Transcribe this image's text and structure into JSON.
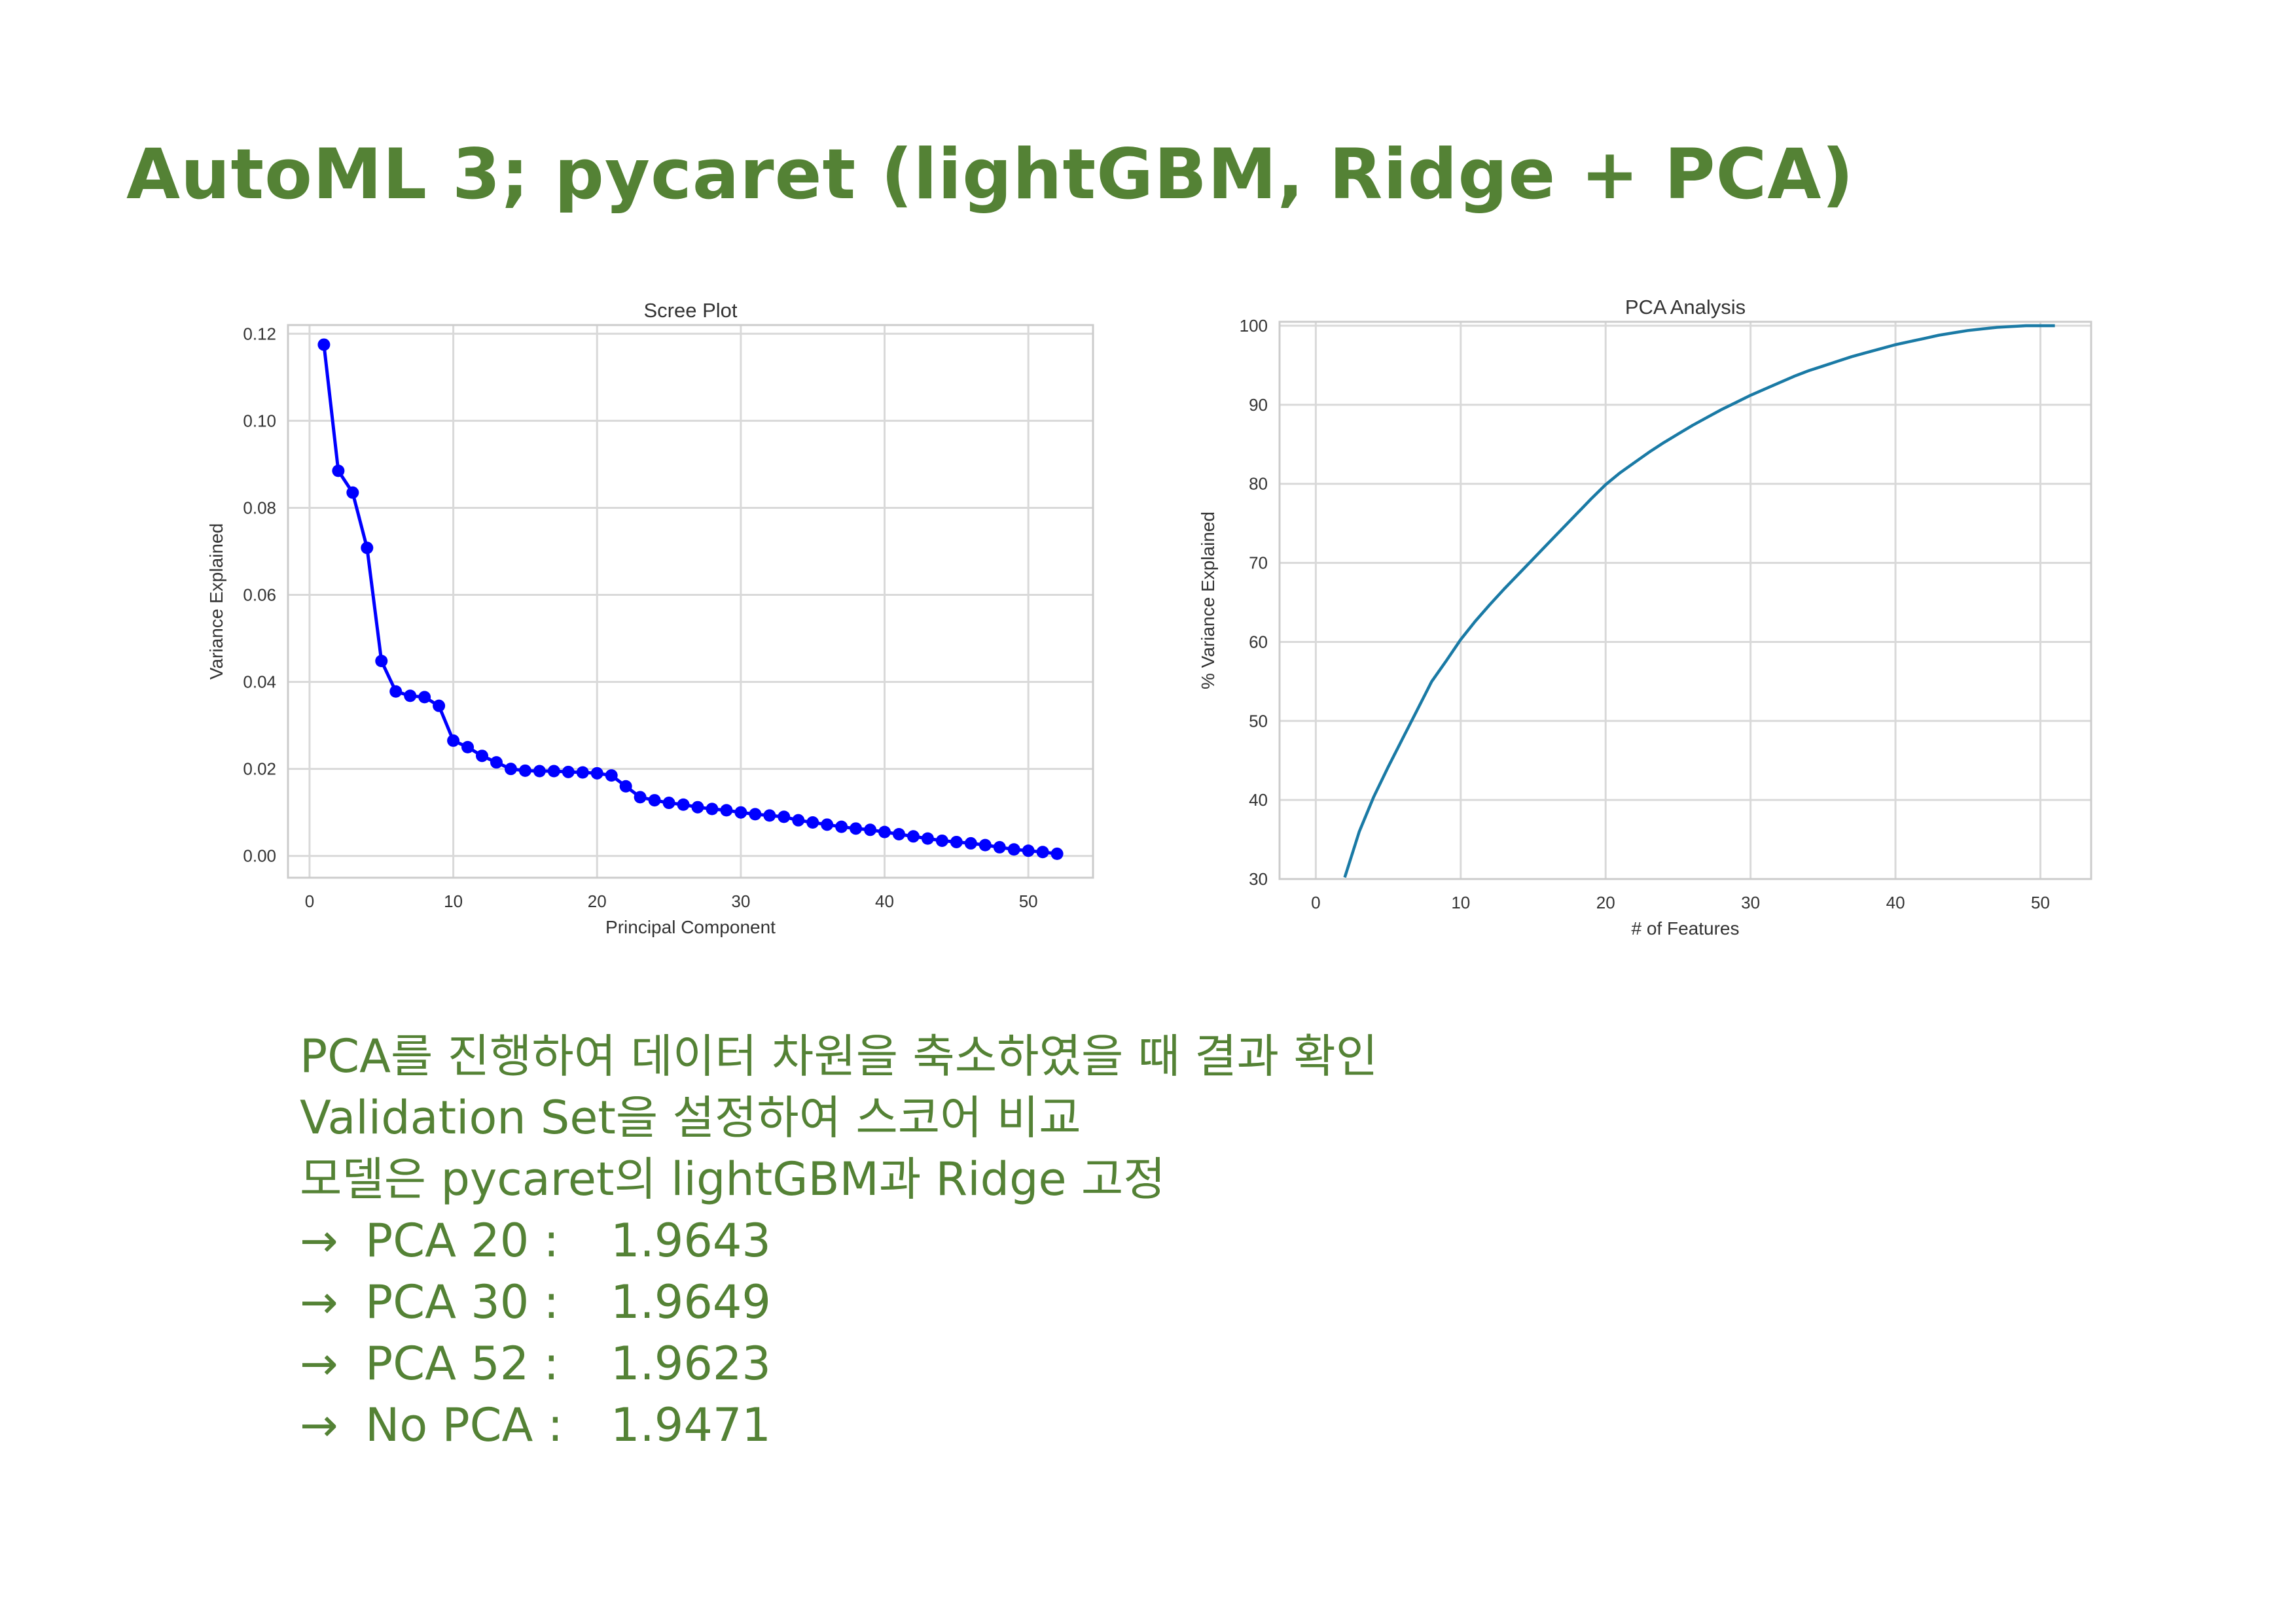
{
  "slide": {
    "title": "AutoML 3; pycaret (lightGBM, Ridge + PCA)"
  },
  "chart_data": [
    {
      "type": "line",
      "title": "Scree Plot",
      "xlabel": "Principal Component",
      "ylabel": "Variance Explained",
      "xlim": [
        -1.5,
        54.5
      ],
      "ylim": [
        -0.005,
        0.122
      ],
      "xticks": [
        0,
        10,
        20,
        30,
        40,
        50
      ],
      "yticks": [
        0.0,
        0.02,
        0.04,
        0.06,
        0.08,
        0.1,
        0.12
      ],
      "ytick_labels": [
        "0.00",
        "0.02",
        "0.04",
        "0.06",
        "0.08",
        "0.10",
        "0.12"
      ],
      "grid": true,
      "markers": true,
      "color": "#0000ff",
      "x": [
        1,
        2,
        3,
        4,
        5,
        6,
        7,
        8,
        9,
        10,
        11,
        12,
        13,
        14,
        15,
        16,
        17,
        18,
        19,
        20,
        21,
        22,
        23,
        24,
        25,
        26,
        27,
        28,
        29,
        30,
        31,
        32,
        33,
        34,
        35,
        36,
        37,
        38,
        39,
        40,
        41,
        42,
        43,
        44,
        45,
        46,
        47,
        48,
        49,
        50,
        51,
        52
      ],
      "y": [
        0.1175,
        0.0885,
        0.0835,
        0.0708,
        0.0448,
        0.0378,
        0.0368,
        0.0365,
        0.0345,
        0.0265,
        0.025,
        0.023,
        0.0215,
        0.02,
        0.0196,
        0.0195,
        0.0195,
        0.0193,
        0.0192,
        0.019,
        0.0185,
        0.016,
        0.0135,
        0.0128,
        0.0122,
        0.0118,
        0.0112,
        0.0108,
        0.0105,
        0.01,
        0.0096,
        0.0093,
        0.009,
        0.0082,
        0.0077,
        0.0072,
        0.0067,
        0.0063,
        0.006,
        0.0055,
        0.005,
        0.0045,
        0.004,
        0.0035,
        0.0032,
        0.0029,
        0.0025,
        0.002,
        0.0015,
        0.0012,
        0.0009,
        0.0005
      ]
    },
    {
      "type": "line",
      "title": "PCA Analysis",
      "xlabel": "# of Features",
      "ylabel": "% Variance Explained",
      "xlim": [
        -2.5,
        53.5
      ],
      "ylim": [
        30,
        100.5
      ],
      "xticks": [
        0,
        10,
        20,
        30,
        40,
        50
      ],
      "yticks": [
        30,
        40,
        50,
        60,
        70,
        80,
        90,
        100
      ],
      "grid": true,
      "markers": false,
      "color": "#1a7aa5",
      "x": [
        2,
        3,
        4,
        5,
        6,
        7,
        8,
        9,
        10,
        11,
        12,
        13,
        14,
        15,
        16,
        17,
        18,
        19,
        20,
        21,
        22,
        23,
        24,
        25,
        26,
        27,
        28,
        29,
        30,
        31,
        32,
        33,
        34,
        35,
        36,
        37,
        38,
        39,
        40,
        41,
        42,
        43,
        44,
        45,
        46,
        47,
        48,
        49,
        50,
        51
      ],
      "y": [
        30.2,
        36.0,
        40.4,
        44.2,
        47.8,
        51.4,
        55.0,
        57.6,
        60.3,
        62.6,
        64.7,
        66.7,
        68.6,
        70.5,
        72.4,
        74.3,
        76.2,
        78.1,
        79.9,
        81.4,
        82.7,
        84.0,
        85.2,
        86.3,
        87.4,
        88.4,
        89.4,
        90.3,
        91.2,
        92.0,
        92.8,
        93.6,
        94.3,
        94.9,
        95.5,
        96.1,
        96.6,
        97.1,
        97.6,
        98.0,
        98.4,
        98.8,
        99.1,
        99.4,
        99.6,
        99.8,
        99.9,
        100.0,
        100.0,
        100.0
      ]
    }
  ],
  "notes": {
    "lines": [
      "PCA를 진행하여 데이터 차원을 축소하였을 때 결과 확인",
      "Validation Set을 설정하여 스코어 비교",
      "모델은 pycaret의 lightGBM과 Ridge 고정"
    ],
    "arrow": "→",
    "scores": [
      {
        "label": "PCA 20 :",
        "value": "1.9643"
      },
      {
        "label": "PCA 30 :",
        "value": "1.9649"
      },
      {
        "label": "PCA 52 :",
        "value": "1.9623"
      },
      {
        "label": "No PCA :",
        "value": "1.9471"
      }
    ]
  }
}
